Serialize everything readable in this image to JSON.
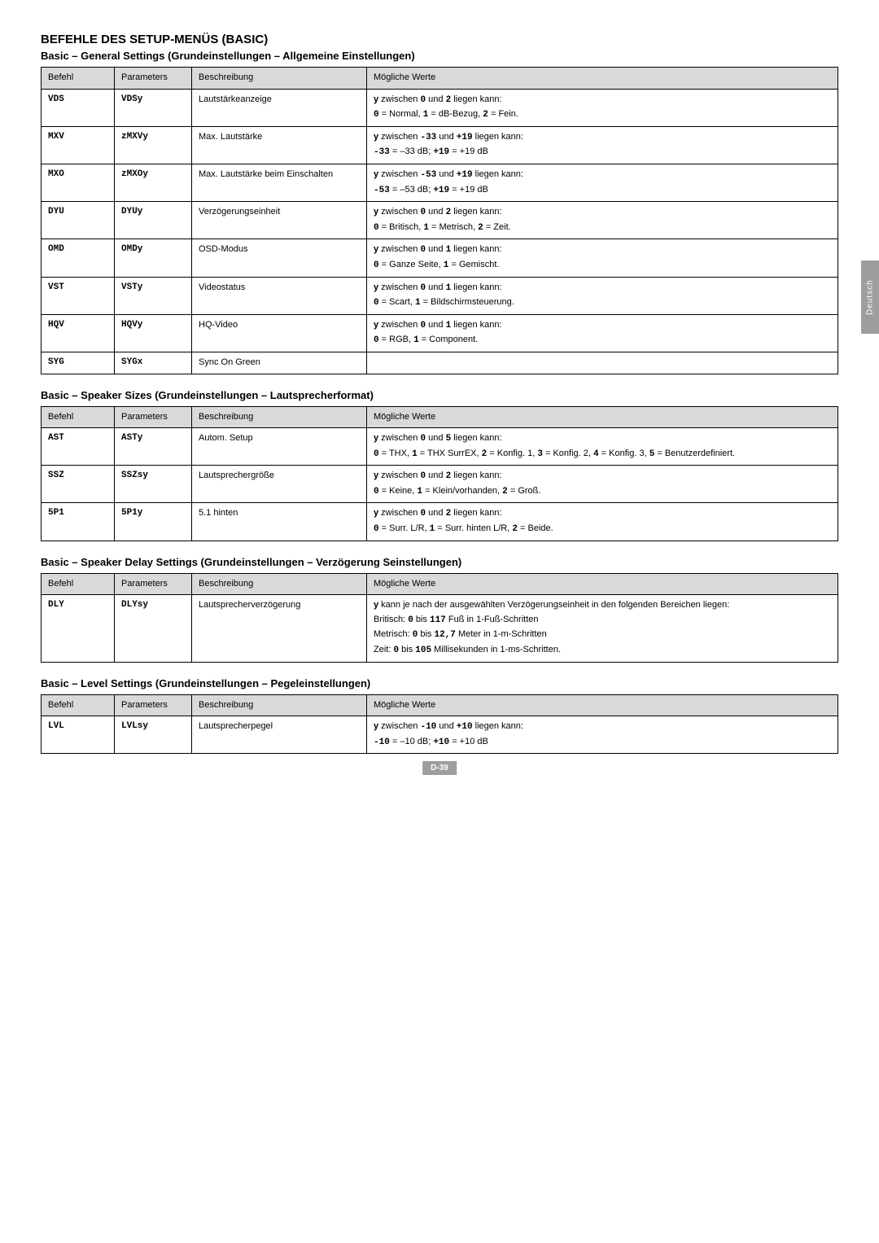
{
  "page": {
    "main_title": "BEFEHLE DES SETUP-MENÜS (BASIC)",
    "side_tab": "Deutsch",
    "page_number": "D-39"
  },
  "headers": {
    "befehl": "Befehl",
    "parameters": "Parameters",
    "beschreibung": "Beschreibung",
    "werte": "Mögliche Werte"
  },
  "sections": [
    {
      "title": "Basic – General Settings (Grundeinstellungen – Allgemeine Einstellungen)",
      "rows": [
        {
          "befehl": "VDS",
          "params": "VDSy",
          "beschreibung": "Lautstärkeanzeige",
          "werte_html": "<b>y</b> zwischen <span class='mono'>0</span> und <span class='mono'>2</span> liegen kann:<br><span class='mono'>0</span> = Normal, <span class='mono'>1</span> =  dB-Bezug, <span class='mono'>2</span> = Fein."
        },
        {
          "befehl": "MXV",
          "params": "zMXVy",
          "beschreibung": "Max. Lautstärke",
          "werte_html": "<b>y</b> zwischen <span class='mono'>-33</span> und <span class='mono'>+19</span> liegen kann:<br><span class='mono'>-33</span> = –33 dB; <span class='mono'>+19</span> = +19 dB"
        },
        {
          "befehl": "MXO",
          "params": "zMXOy",
          "beschreibung": "Max. Lautstärke beim Einschalten",
          "werte_html": "<b>y</b> zwischen <span class='mono'>-53</span> und <span class='mono'>+19</span> liegen kann:<br><span class='mono'>-53</span> = –53 dB; <span class='mono'>+19</span> = +19 dB"
        },
        {
          "befehl": "DYU",
          "params": "DYUy",
          "beschreibung": "Verzögerungseinheit",
          "werte_html": "<b>y</b> zwischen <span class='mono'>0</span> und <span class='mono'>2</span> liegen kann:<br><span class='mono'>0</span> = Britisch, <span class='mono'>1</span> = Metrisch, <span class='mono'>2</span> = Zeit."
        },
        {
          "befehl": "OMD",
          "params": "OMDy",
          "beschreibung": "OSD-Modus",
          "werte_html": "<b>y</b> zwischen <span class='mono'>0</span> und <span class='mono'>1</span> liegen kann:<br><span class='mono'>0</span> = Ganze Seite, <span class='mono'>1</span> = Gemischt."
        },
        {
          "befehl": "VST",
          "params": "VSTy",
          "beschreibung": "Videostatus",
          "werte_html": "<b>y</b> zwischen <span class='mono'>0</span> und <span class='mono'>1</span> liegen kann:<br><span class='mono'>0</span> = Scart, <span class='mono'>1</span> = Bildschirmsteuerung."
        },
        {
          "befehl": "HQV",
          "params": "HQVy",
          "beschreibung": "HQ-Video",
          "werte_html": "<b>y</b> zwischen <span class='mono'>0</span> und <span class='mono'>1</span> liegen kann:<br><span class='mono'>0</span> = RGB, <span class='mono'>1</span> = Component."
        },
        {
          "befehl": "SYG",
          "params": "SYGx",
          "beschreibung": "Sync On Green",
          "werte_html": ""
        }
      ]
    },
    {
      "title": "Basic – Speaker Sizes  (Grundeinstellungen – Lautsprecherformat)",
      "rows": [
        {
          "befehl": "AST",
          "params": "ASTy",
          "beschreibung": "Autom. Setup",
          "werte_html": "<b>y</b> zwischen <span class='mono'>0</span> und <span class='mono'>5</span> liegen kann:<br><span class='mono'>0</span> = THX, <span class='mono'>1</span> = THX SurrEX, <span class='mono'>2</span> = Konfig. 1, <span class='mono'>3</span> = Konfig. 2, <span class='mono'>4</span> = Konfig. 3, <span class='mono'>5</span> = Benutzerdefiniert."
        },
        {
          "befehl": "SSZ",
          "params": "SSZsy",
          "beschreibung": "Lautsprechergröße",
          "werte_html": "<b>y</b> zwischen <span class='mono'>0</span> und <span class='mono'>2</span> liegen kann:<br><span class='mono'>0</span> = Keine, <span class='mono'>1</span> = Klein/vorhanden, <span class='mono'>2</span> = Groß."
        },
        {
          "befehl": "5P1",
          "params": "5P1y",
          "beschreibung": "5.1 hinten",
          "werte_html": "<b>y</b> zwischen <span class='mono'>0</span> und <span class='mono'>2</span> liegen kann:<br><span class='mono'>0</span> = Surr. L/R, <span class='mono'>1</span> = Surr. hinten L/R, <span class='mono'>2</span> = Beide."
        }
      ]
    },
    {
      "title": "Basic – Speaker Delay Settings (Grundeinstellungen – Verzögerung Seinstellungen)",
      "rows": [
        {
          "befehl": "DLY",
          "params": "DLYsy",
          "beschreibung": "Lautsprecherverzögerung",
          "werte_html": "<b>y</b> kann je nach der ausgewählten Verzögerungseinheit in den folgenden Bereichen liegen:<br>Britisch: <span class='mono'>0</span> bis <span class='mono'>117</span> Fuß in 1-Fuß-Schritten<br>Metrisch: <span class='mono'>0</span> bis <span class='mono'>12,7</span> Meter in 1-m-Schritten<br>Zeit: <span class='mono'>0</span> bis <span class='mono'>105</span> Millisekunden in 1-ms-Schritten."
        }
      ]
    },
    {
      "title": "Basic – Level Settings (Grundeinstellungen – Pegeleinstellungen)",
      "rows": [
        {
          "befehl": "LVL",
          "params": "LVLsy",
          "beschreibung": "Lautsprecherpegel",
          "werte_html": "<b>y</b> zwischen <span class='mono'>-10</span> und <span class='mono'>+10</span> liegen kann:<br><span class='mono'>-10</span> = –10 dB; <span class='mono'>+10</span> = +10 dB"
        }
      ]
    }
  ]
}
